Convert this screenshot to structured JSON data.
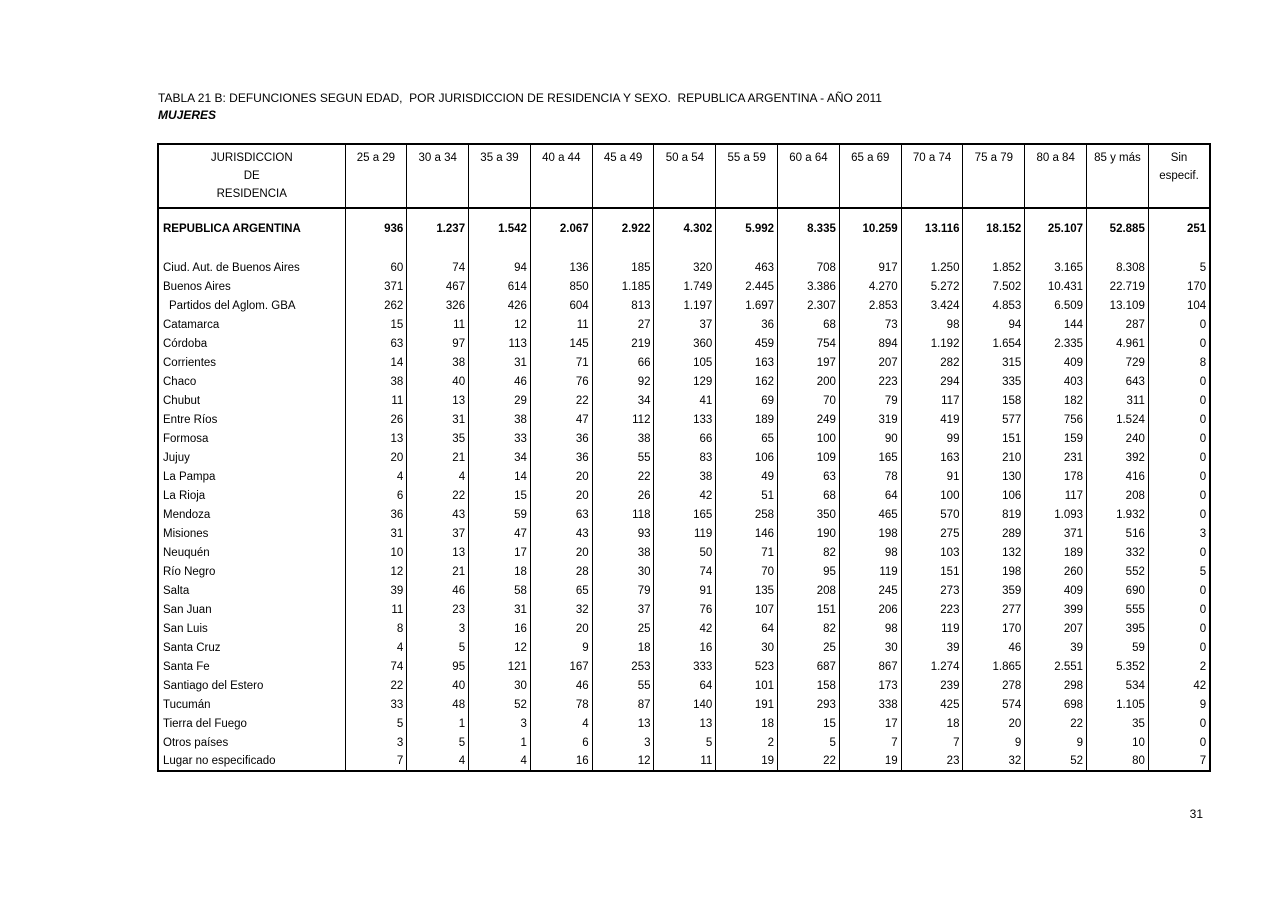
{
  "page": {
    "title": "TABLA 21 B: DEFUNCIONES SEGUN EDAD,  POR JURISDICCION DE RESIDENCIA Y SEXO.  REPUBLICA ARGENTINA - AÑO 2011",
    "subtitle": "MUJERES",
    "page_number": "31"
  },
  "table": {
    "header": {
      "jurisdiction_lines": [
        "JURISDICCION",
        "DE",
        "RESIDENCIA"
      ],
      "age_columns": [
        "25 a 29",
        "30 a 34",
        "35 a 39",
        "40 a 44",
        "45 a 49",
        "50 a 54",
        "55 a 59",
        "60 a 64",
        "65 a 69",
        "70 a 74",
        "75 a 79",
        "80 a 84",
        "85 y más"
      ],
      "last_column_lines": [
        "Sin",
        "especif."
      ]
    },
    "total_row": {
      "name": "REPUBLICA ARGENTINA",
      "values": [
        "936",
        "1.237",
        "1.542",
        "2.067",
        "2.922",
        "4.302",
        "5.992",
        "8.335",
        "10.259",
        "13.116",
        "18.152",
        "25.107",
        "52.885",
        "251"
      ]
    },
    "rows": [
      {
        "name": "Ciud. Aut. de  Buenos Aires",
        "indent": false,
        "values": [
          "60",
          "74",
          "94",
          "136",
          "185",
          "320",
          "463",
          "708",
          "917",
          "1.250",
          "1.852",
          "3.165",
          "8.308",
          "5"
        ]
      },
      {
        "name": "Buenos Aires",
        "indent": false,
        "values": [
          "371",
          "467",
          "614",
          "850",
          "1.185",
          "1.749",
          "2.445",
          "3.386",
          "4.270",
          "5.272",
          "7.502",
          "10.431",
          "22.719",
          "170"
        ]
      },
      {
        "name": "Partidos del Aglom. GBA",
        "indent": true,
        "values": [
          "262",
          "326",
          "426",
          "604",
          "813",
          "1.197",
          "1.697",
          "2.307",
          "2.853",
          "3.424",
          "4.853",
          "6.509",
          "13.109",
          "104"
        ]
      },
      {
        "name": "Catamarca",
        "indent": false,
        "values": [
          "15",
          "11",
          "12",
          "11",
          "27",
          "37",
          "36",
          "68",
          "73",
          "98",
          "94",
          "144",
          "287",
          "0"
        ]
      },
      {
        "name": "Córdoba",
        "indent": false,
        "values": [
          "63",
          "97",
          "113",
          "145",
          "219",
          "360",
          "459",
          "754",
          "894",
          "1.192",
          "1.654",
          "2.335",
          "4.961",
          "0"
        ]
      },
      {
        "name": "Corrientes",
        "indent": false,
        "values": [
          "14",
          "38",
          "31",
          "71",
          "66",
          "105",
          "163",
          "197",
          "207",
          "282",
          "315",
          "409",
          "729",
          "8"
        ]
      },
      {
        "name": "Chaco",
        "indent": false,
        "values": [
          "38",
          "40",
          "46",
          "76",
          "92",
          "129",
          "162",
          "200",
          "223",
          "294",
          "335",
          "403",
          "643",
          "0"
        ]
      },
      {
        "name": "Chubut",
        "indent": false,
        "values": [
          "11",
          "13",
          "29",
          "22",
          "34",
          "41",
          "69",
          "70",
          "79",
          "117",
          "158",
          "182",
          "311",
          "0"
        ]
      },
      {
        "name": "Entre Ríos",
        "indent": false,
        "values": [
          "26",
          "31",
          "38",
          "47",
          "112",
          "133",
          "189",
          "249",
          "319",
          "419",
          "577",
          "756",
          "1.524",
          "0"
        ]
      },
      {
        "name": "Formosa",
        "indent": false,
        "values": [
          "13",
          "35",
          "33",
          "36",
          "38",
          "66",
          "65",
          "100",
          "90",
          "99",
          "151",
          "159",
          "240",
          "0"
        ]
      },
      {
        "name": "Jujuy",
        "indent": false,
        "values": [
          "20",
          "21",
          "34",
          "36",
          "55",
          "83",
          "106",
          "109",
          "165",
          "163",
          "210",
          "231",
          "392",
          "0"
        ]
      },
      {
        "name": "La Pampa",
        "indent": false,
        "values": [
          "4",
          "4",
          "14",
          "20",
          "22",
          "38",
          "49",
          "63",
          "78",
          "91",
          "130",
          "178",
          "416",
          "0"
        ]
      },
      {
        "name": "La Rioja",
        "indent": false,
        "values": [
          "6",
          "22",
          "15",
          "20",
          "26",
          "42",
          "51",
          "68",
          "64",
          "100",
          "106",
          "117",
          "208",
          "0"
        ]
      },
      {
        "name": "Mendoza",
        "indent": false,
        "values": [
          "36",
          "43",
          "59",
          "63",
          "118",
          "165",
          "258",
          "350",
          "465",
          "570",
          "819",
          "1.093",
          "1.932",
          "0"
        ]
      },
      {
        "name": "Misiones",
        "indent": false,
        "values": [
          "31",
          "37",
          "47",
          "43",
          "93",
          "119",
          "146",
          "190",
          "198",
          "275",
          "289",
          "371",
          "516",
          "3"
        ]
      },
      {
        "name": "Neuquén",
        "indent": false,
        "values": [
          "10",
          "13",
          "17",
          "20",
          "38",
          "50",
          "71",
          "82",
          "98",
          "103",
          "132",
          "189",
          "332",
          "0"
        ]
      },
      {
        "name": "Río Negro",
        "indent": false,
        "values": [
          "12",
          "21",
          "18",
          "28",
          "30",
          "74",
          "70",
          "95",
          "119",
          "151",
          "198",
          "260",
          "552",
          "5"
        ]
      },
      {
        "name": "Salta",
        "indent": false,
        "values": [
          "39",
          "46",
          "58",
          "65",
          "79",
          "91",
          "135",
          "208",
          "245",
          "273",
          "359",
          "409",
          "690",
          "0"
        ]
      },
      {
        "name": "San Juan",
        "indent": false,
        "values": [
          "11",
          "23",
          "31",
          "32",
          "37",
          "76",
          "107",
          "151",
          "206",
          "223",
          "277",
          "399",
          "555",
          "0"
        ]
      },
      {
        "name": "San Luis",
        "indent": false,
        "values": [
          "8",
          "3",
          "16",
          "20",
          "25",
          "42",
          "64",
          "82",
          "98",
          "119",
          "170",
          "207",
          "395",
          "0"
        ]
      },
      {
        "name": "Santa Cruz",
        "indent": false,
        "values": [
          "4",
          "5",
          "12",
          "9",
          "18",
          "16",
          "30",
          "25",
          "30",
          "39",
          "46",
          "39",
          "59",
          "0"
        ]
      },
      {
        "name": "Santa Fe",
        "indent": false,
        "values": [
          "74",
          "95",
          "121",
          "167",
          "253",
          "333",
          "523",
          "687",
          "867",
          "1.274",
          "1.865",
          "2.551",
          "5.352",
          "2"
        ]
      },
      {
        "name": "Santiago del Estero",
        "indent": false,
        "values": [
          "22",
          "40",
          "30",
          "46",
          "55",
          "64",
          "101",
          "158",
          "173",
          "239",
          "278",
          "298",
          "534",
          "42"
        ]
      },
      {
        "name": "Tucumán",
        "indent": false,
        "values": [
          "33",
          "48",
          "52",
          "78",
          "87",
          "140",
          "191",
          "293",
          "338",
          "425",
          "574",
          "698",
          "1.105",
          "9"
        ]
      },
      {
        "name": "Tierra del Fuego",
        "indent": false,
        "values": [
          "5",
          "1",
          "3",
          "4",
          "13",
          "13",
          "18",
          "15",
          "17",
          "18",
          "20",
          "22",
          "35",
          "0"
        ]
      },
      {
        "name": "Otros países",
        "indent": false,
        "values": [
          "3",
          "5",
          "1",
          "6",
          "3",
          "5",
          "2",
          "5",
          "7",
          "7",
          "9",
          "9",
          "10",
          "0"
        ]
      },
      {
        "name": "Lugar no especificado",
        "indent": false,
        "values": [
          "7",
          "4",
          "4",
          "16",
          "12",
          "11",
          "19",
          "22",
          "19",
          "23",
          "32",
          "52",
          "80",
          "7"
        ]
      }
    ]
  }
}
